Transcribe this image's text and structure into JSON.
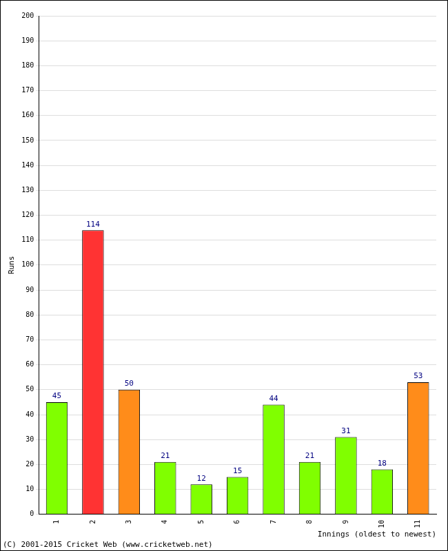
{
  "chart_data": {
    "type": "bar",
    "categories": [
      "1",
      "2",
      "3",
      "4",
      "5",
      "6",
      "7",
      "8",
      "9",
      "10",
      "11"
    ],
    "values": [
      45,
      114,
      50,
      21,
      12,
      15,
      44,
      21,
      31,
      18,
      53
    ],
    "colors": [
      "#80ff00",
      "#ff3333",
      "#ff8c1a",
      "#80ff00",
      "#80ff00",
      "#80ff00",
      "#80ff00",
      "#80ff00",
      "#80ff00",
      "#80ff00",
      "#ff8c1a"
    ],
    "x_label": "Innings (oldest to newest)",
    "y_label": "Runs",
    "annotations": [
      "(C) 2001-2015 Cricket Web (www.cricketweb.net)"
    ],
    "ylim": [
      0,
      200
    ],
    "yticks": [
      0,
      10,
      20,
      30,
      40,
      50,
      60,
      70,
      80,
      90,
      100,
      110,
      120,
      130,
      140,
      150,
      160,
      170,
      180,
      190,
      200
    ],
    "grid": true,
    "data_labels": true
  }
}
